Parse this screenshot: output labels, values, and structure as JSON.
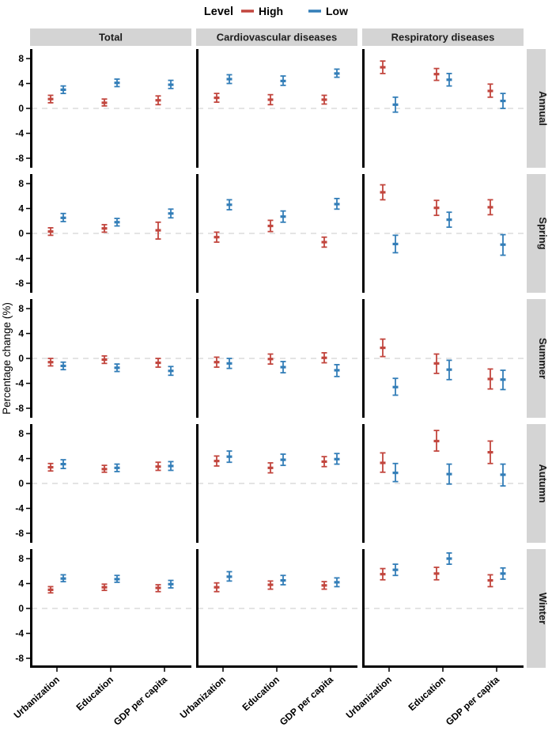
{
  "chart_data": {
    "type": "errorbar",
    "legend_title": "Level",
    "facet_columns": [
      "Total",
      "Cardiovascular diseases",
      "Respiratory diseases"
    ],
    "facet_rows": [
      "Annual",
      "Spring",
      "Summer",
      "Autumn",
      "Winter"
    ],
    "categories": [
      "Urbanization",
      "Education",
      "GDP per capita"
    ],
    "series": [
      {
        "name": "High",
        "color": "#c2463e"
      },
      {
        "name": "Low",
        "color": "#337eb8"
      }
    ],
    "ylabel": "Percentage change (%)",
    "yticks": [
      8,
      4,
      0,
      -4,
      -8
    ],
    "ylim": [
      -9.5,
      9.5
    ],
    "zero_line": 0,
    "grid": "zero-dashed",
    "strip_bg": "#d4d4d4",
    "zero_line_color": "#dcdcdc",
    "panels": [
      [
        {
          "High": [
            [
              1.5,
              0.9,
              2.1
            ],
            [
              0.9,
              0.4,
              1.5
            ],
            [
              1.3,
              0.6,
              2.0
            ]
          ],
          "Low": [
            [
              3.0,
              2.4,
              3.6
            ],
            [
              4.1,
              3.5,
              4.7
            ],
            [
              3.8,
              3.2,
              4.5
            ]
          ]
        },
        {
          "High": [
            [
              1.7,
              1.0,
              2.4
            ],
            [
              1.4,
              0.6,
              2.2
            ],
            [
              1.4,
              0.7,
              2.1
            ]
          ],
          "Low": [
            [
              4.7,
              4.0,
              5.4
            ],
            [
              4.4,
              3.7,
              5.2
            ],
            [
              5.6,
              5.0,
              6.3
            ]
          ]
        },
        {
          "High": [
            [
              6.6,
              5.6,
              7.6
            ],
            [
              5.5,
              4.5,
              6.4
            ],
            [
              2.8,
              1.8,
              3.9
            ]
          ],
          "Low": [
            [
              0.6,
              -0.6,
              1.8
            ],
            [
              4.6,
              3.6,
              5.6
            ],
            [
              1.2,
              0.0,
              2.4
            ]
          ]
        }
      ],
      [
        {
          "High": [
            [
              0.3,
              -0.3,
              0.9
            ],
            [
              0.8,
              0.2,
              1.4
            ],
            [
              0.5,
              -0.9,
              1.8
            ]
          ],
          "Low": [
            [
              2.5,
              1.9,
              3.2
            ],
            [
              1.8,
              1.2,
              2.4
            ],
            [
              3.2,
              2.5,
              3.9
            ]
          ]
        },
        {
          "High": [
            [
              -0.6,
              -1.4,
              0.2
            ],
            [
              1.2,
              0.3,
              2.1
            ],
            [
              -1.4,
              -2.2,
              -0.6
            ]
          ],
          "Low": [
            [
              4.6,
              3.8,
              5.4
            ],
            [
              2.7,
              1.8,
              3.6
            ],
            [
              4.7,
              3.9,
              5.6
            ]
          ]
        },
        {
          "High": [
            [
              6.6,
              5.4,
              7.8
            ],
            [
              4.1,
              2.9,
              5.3
            ],
            [
              4.2,
              3.0,
              5.4
            ]
          ],
          "Low": [
            [
              -1.7,
              -3.1,
              -0.3
            ],
            [
              2.2,
              1.0,
              3.4
            ],
            [
              -1.8,
              -3.5,
              -0.2
            ]
          ]
        }
      ],
      [
        {
          "High": [
            [
              -0.6,
              -1.2,
              0.0
            ],
            [
              -0.2,
              -0.8,
              0.4
            ],
            [
              -0.7,
              -1.4,
              0.0
            ]
          ],
          "Low": [
            [
              -1.2,
              -1.8,
              -0.6
            ],
            [
              -1.5,
              -2.1,
              -0.9
            ],
            [
              -2.0,
              -2.7,
              -1.3
            ]
          ]
        },
        {
          "High": [
            [
              -0.6,
              -1.4,
              0.2
            ],
            [
              -0.1,
              -0.9,
              0.7
            ],
            [
              0.1,
              -0.7,
              0.9
            ]
          ],
          "Low": [
            [
              -0.8,
              -1.6,
              0.0
            ],
            [
              -1.4,
              -2.3,
              -0.5
            ],
            [
              -1.9,
              -2.9,
              -1.0
            ]
          ]
        },
        {
          "High": [
            [
              1.7,
              0.3,
              3.1
            ],
            [
              -0.8,
              -2.4,
              0.7
            ],
            [
              -3.3,
              -4.9,
              -1.7
            ]
          ],
          "Low": [
            [
              -4.6,
              -5.9,
              -3.2
            ],
            [
              -1.8,
              -3.4,
              -0.3
            ],
            [
              -3.4,
              -5.0,
              -1.9
            ]
          ]
        }
      ],
      [
        {
          "High": [
            [
              2.6,
              2.0,
              3.2
            ],
            [
              2.3,
              1.8,
              2.9
            ],
            [
              2.7,
              2.1,
              3.4
            ]
          ],
          "Low": [
            [
              3.1,
              2.4,
              3.8
            ],
            [
              2.5,
              1.9,
              3.1
            ],
            [
              2.8,
              2.1,
              3.5
            ]
          ]
        },
        {
          "High": [
            [
              3.6,
              2.8,
              4.4
            ],
            [
              2.5,
              1.7,
              3.3
            ],
            [
              3.5,
              2.7,
              4.3
            ]
          ],
          "Low": [
            [
              4.3,
              3.4,
              5.2
            ],
            [
              3.8,
              2.9,
              4.7
            ],
            [
              3.9,
              3.1,
              4.8
            ]
          ]
        },
        {
          "High": [
            [
              3.3,
              1.8,
              4.9
            ],
            [
              6.8,
              5.2,
              8.5
            ],
            [
              5.0,
              3.2,
              6.8
            ]
          ],
          "Low": [
            [
              1.7,
              0.3,
              3.2
            ],
            [
              1.5,
              -0.1,
              3.1
            ],
            [
              1.4,
              -0.4,
              3.1
            ]
          ]
        }
      ],
      [
        {
          "High": [
            [
              3.0,
              2.5,
              3.5
            ],
            [
              3.4,
              2.9,
              3.9
            ],
            [
              3.3,
              2.7,
              3.8
            ]
          ],
          "Low": [
            [
              4.8,
              4.3,
              5.4
            ],
            [
              4.7,
              4.2,
              5.3
            ],
            [
              3.9,
              3.3,
              4.5
            ]
          ]
        },
        {
          "High": [
            [
              3.4,
              2.7,
              4.1
            ],
            [
              3.8,
              3.1,
              4.4
            ],
            [
              3.7,
              3.1,
              4.3
            ]
          ],
          "Low": [
            [
              5.1,
              4.4,
              5.9
            ],
            [
              4.5,
              3.8,
              5.3
            ],
            [
              4.2,
              3.5,
              4.9
            ]
          ]
        },
        {
          "High": [
            [
              5.5,
              4.6,
              6.4
            ],
            [
              5.6,
              4.6,
              6.6
            ],
            [
              4.5,
              3.5,
              5.4
            ]
          ],
          "Low": [
            [
              6.2,
              5.3,
              7.1
            ],
            [
              8.0,
              7.1,
              8.9
            ],
            [
              5.6,
              4.7,
              6.5
            ]
          ]
        }
      ]
    ]
  }
}
